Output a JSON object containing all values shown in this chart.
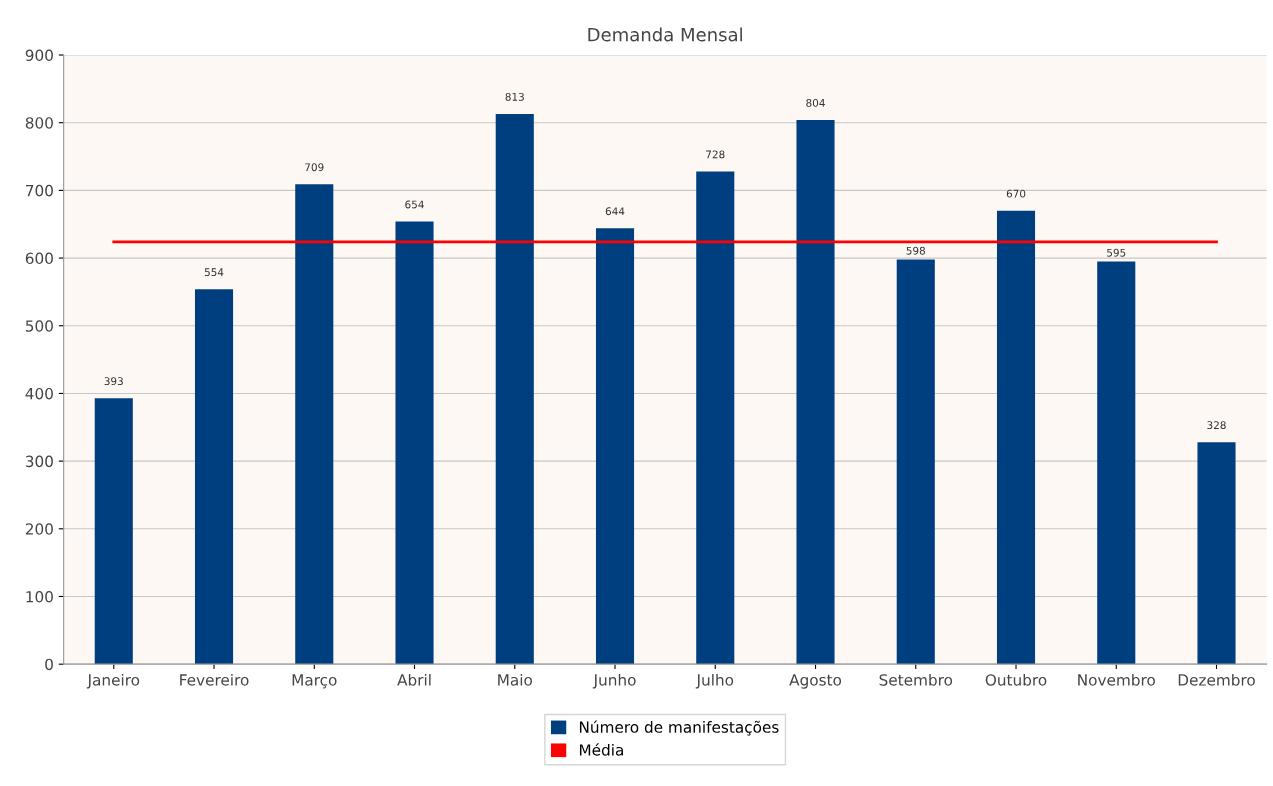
{
  "chart_data": {
    "type": "bar",
    "title": "Demanda Mensal",
    "categories": [
      "Janeiro",
      "Fevereiro",
      "Março",
      "Abril",
      "Maio",
      "Junho",
      "Julho",
      "Agosto",
      "Setembro",
      "Outubro",
      "Novembro",
      "Dezembro"
    ],
    "series": [
      {
        "name": "Número de manifestações",
        "color": "#003f7f",
        "values": [
          393,
          554,
          709,
          654,
          813,
          644,
          728,
          804,
          598,
          670,
          595,
          328
        ],
        "data_labels": true
      },
      {
        "name": "Média",
        "type": "line",
        "color": "#ff0000",
        "values": [
          624,
          624,
          624,
          624,
          624,
          624,
          624,
          624,
          624,
          624,
          624,
          624
        ]
      }
    ],
    "ylim": [
      0,
      900
    ],
    "yticks": [
      0,
      100,
      200,
      300,
      400,
      500,
      600,
      700,
      800,
      900
    ],
    "grid": "y",
    "legend": "bottom"
  }
}
